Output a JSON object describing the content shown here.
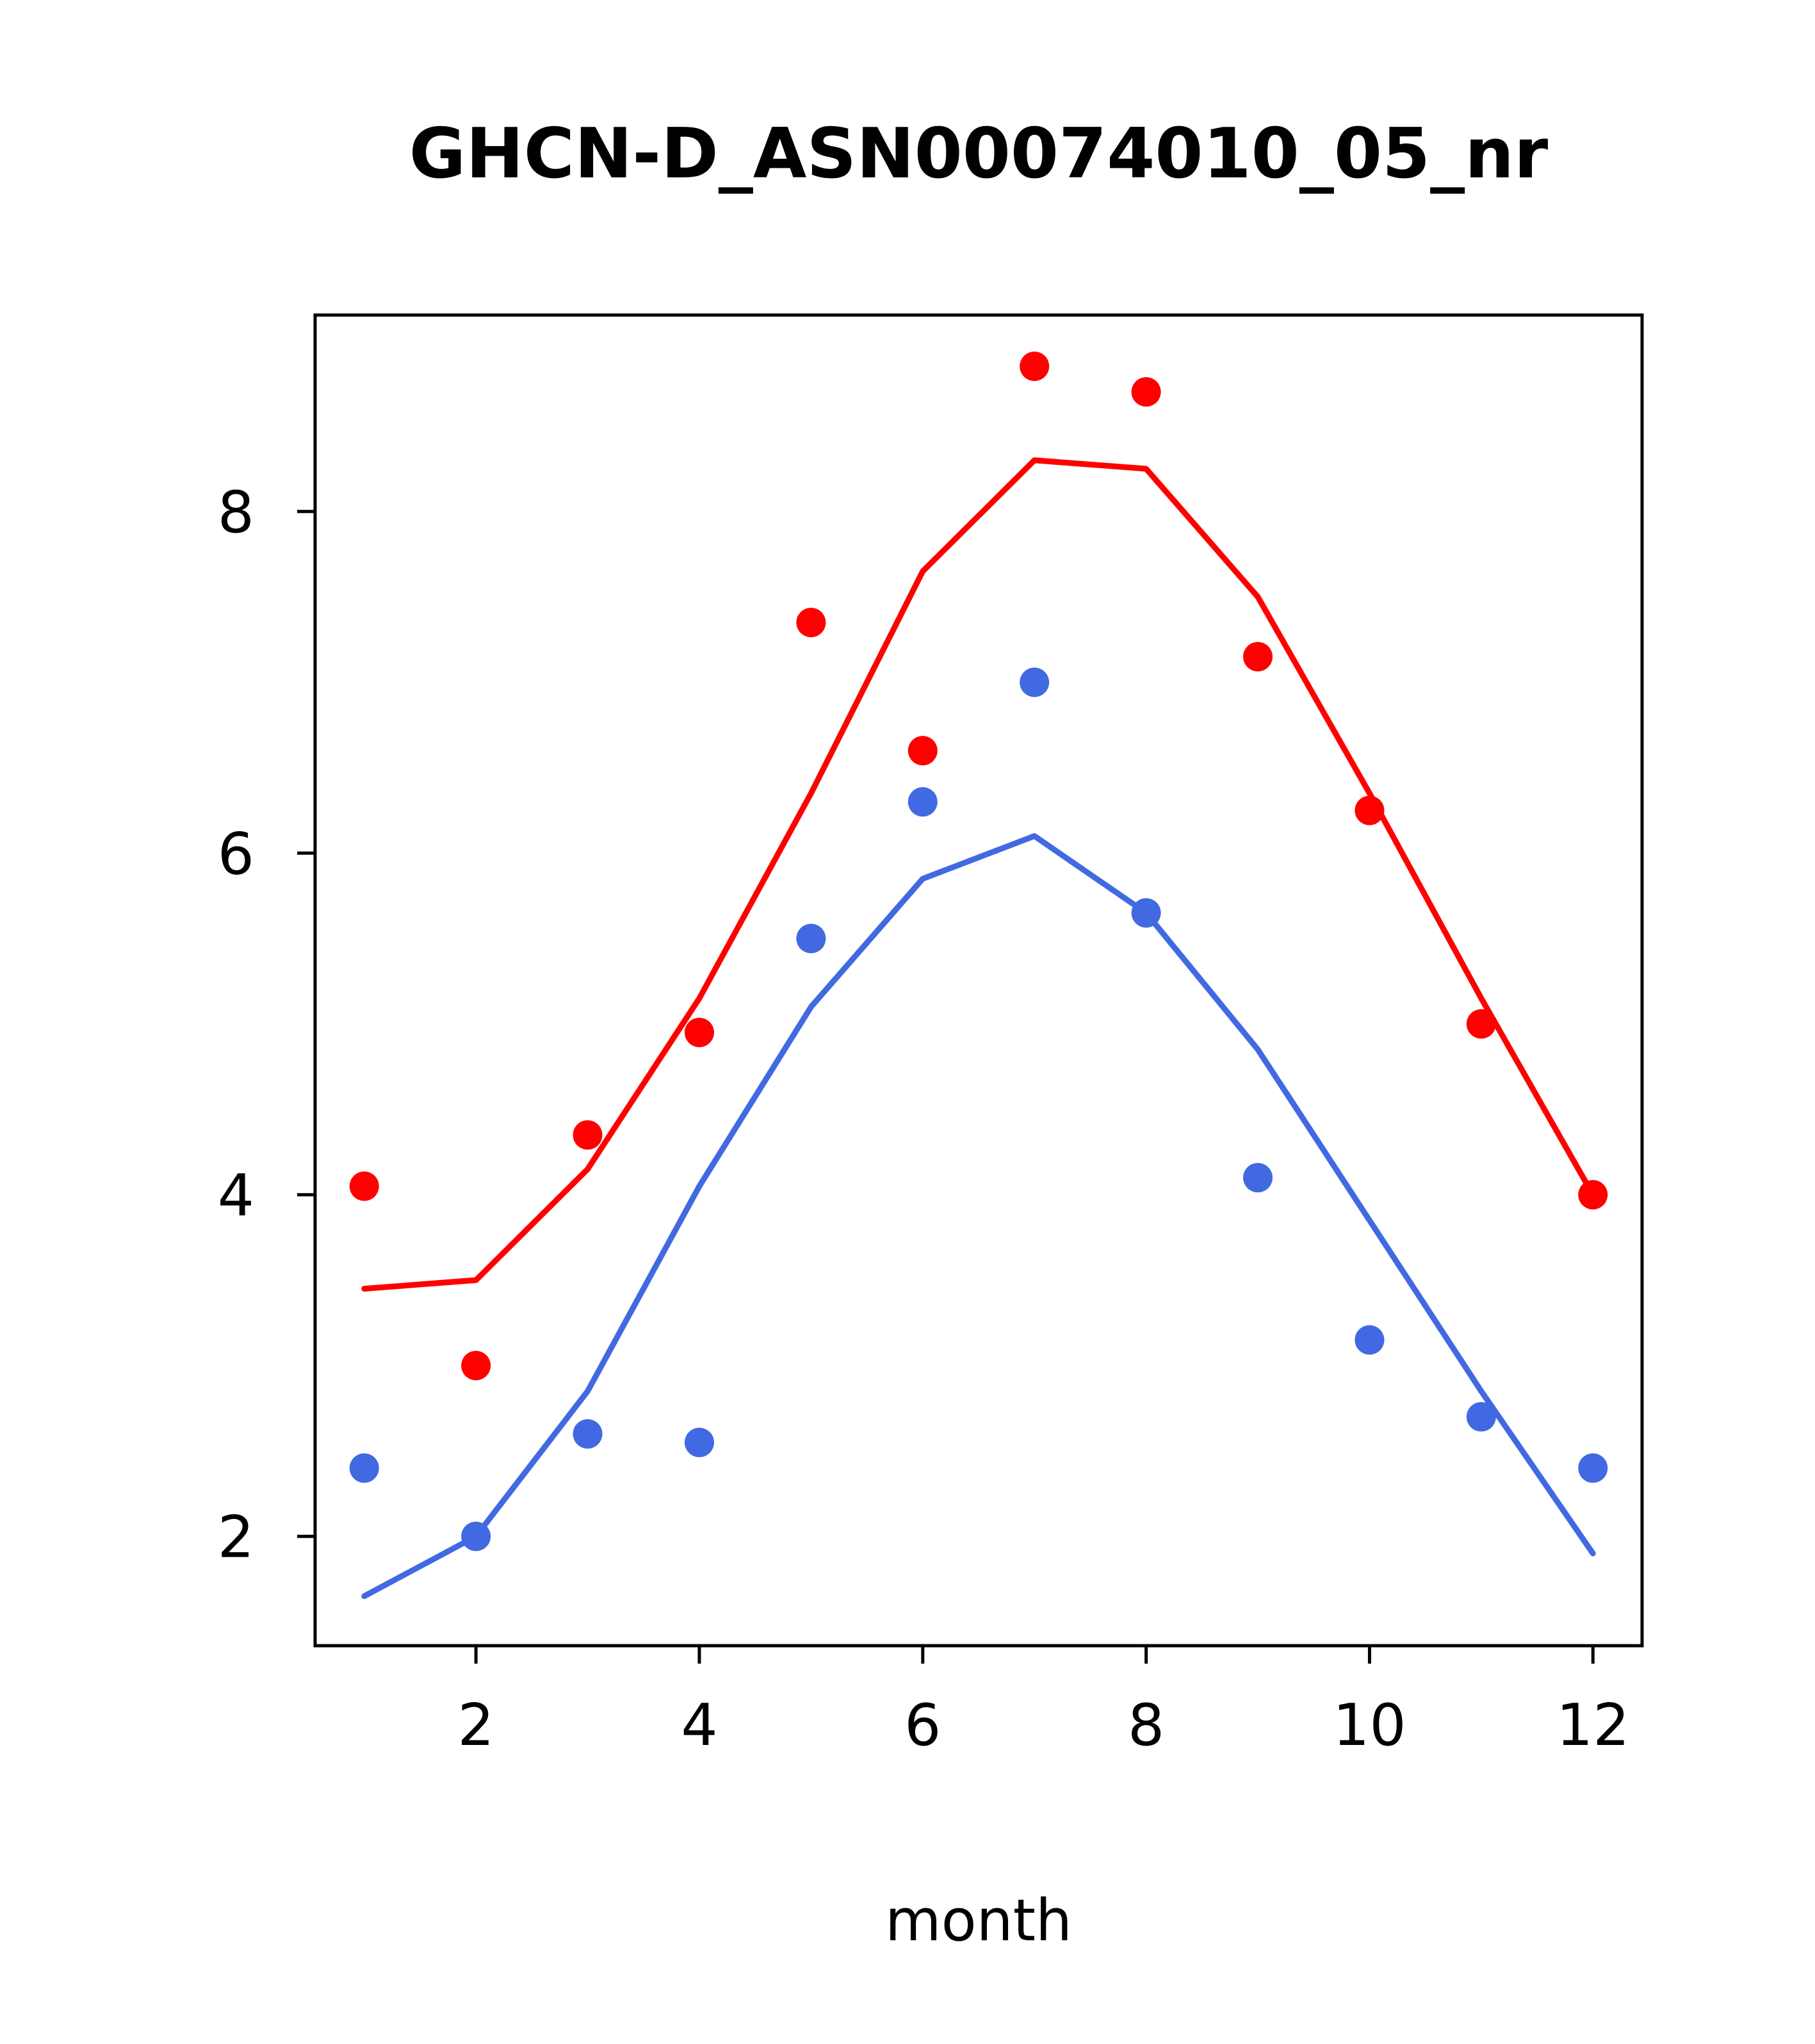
{
  "page": {
    "background": "#ffffff",
    "plot_border_color": "#000000"
  },
  "chart_data": {
    "type": "scatter",
    "title": "GHCN-D_ASN00074010_05_nr",
    "xlabel": "month",
    "ylabel": "",
    "grid": false,
    "legend": "none",
    "x": [
      1,
      2,
      3,
      4,
      5,
      6,
      7,
      8,
      9,
      10,
      11,
      12
    ],
    "xticks": [
      2,
      4,
      6,
      8,
      10,
      12
    ],
    "yticks": [
      2,
      4,
      6,
      8
    ],
    "xlim": [
      0.56,
      12.44
    ],
    "ylim": [
      1.36,
      9.15
    ],
    "series": [
      {
        "name": "red-fit-line",
        "style": "line",
        "color": "#ff0000",
        "values": [
          3.45,
          3.5,
          4.15,
          5.15,
          6.35,
          7.65,
          8.3,
          8.25,
          7.5,
          6.35,
          5.15,
          4.0
        ]
      },
      {
        "name": "blue-fit-line",
        "style": "line",
        "color": "#4169e1",
        "values": [
          1.65,
          2.0,
          2.85,
          4.05,
          5.1,
          5.85,
          6.1,
          5.65,
          4.85,
          3.85,
          2.85,
          1.9
        ]
      },
      {
        "name": "red-points",
        "style": "points",
        "color": "#ff0000",
        "values": [
          4.05,
          3.0,
          4.35,
          4.95,
          7.35,
          6.6,
          8.85,
          8.7,
          7.15,
          6.25,
          5.0,
          4.0
        ]
      },
      {
        "name": "blue-points",
        "style": "points",
        "color": "#4169e1",
        "values": [
          2.4,
          2.0,
          2.6,
          2.55,
          5.5,
          6.3,
          7.0,
          5.65,
          4.1,
          3.15,
          2.7,
          2.4
        ]
      }
    ]
  }
}
